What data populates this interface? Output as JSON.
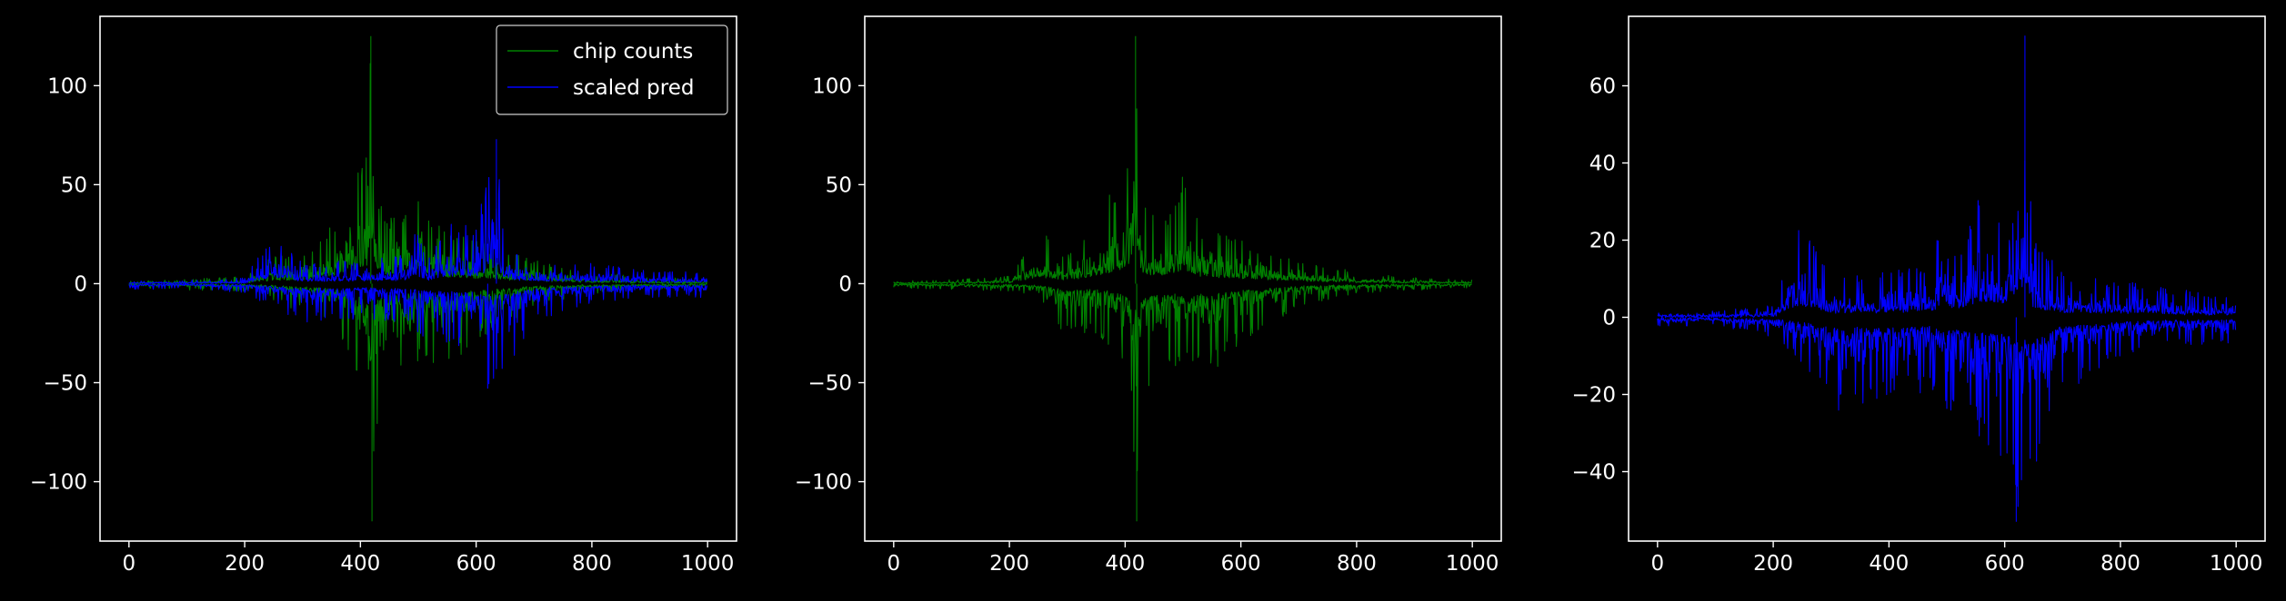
{
  "figure": {
    "background": "#000000",
    "foreground": "#ffffff"
  },
  "chart_data": [
    {
      "type": "line",
      "title": "",
      "xlabel": "",
      "ylabel": "",
      "xlim": [
        -50,
        1050
      ],
      "ylim": [
        -130,
        135
      ],
      "xticks": [
        0,
        200,
        400,
        600,
        800,
        1000
      ],
      "xtick_labels": [
        "0",
        "200",
        "400",
        "600",
        "800",
        "1000"
      ],
      "yticks": [
        -100,
        -50,
        0,
        50,
        100
      ],
      "ytick_labels": [
        "−100",
        "−50",
        "0",
        "50",
        "100"
      ],
      "grid": false,
      "legend": "top-right",
      "series": [
        {
          "name": "chip counts",
          "color": "#008000",
          "n_points": 1000,
          "upper_envelope": [
            [
              0,
              1
            ],
            [
              100,
              2
            ],
            [
              200,
              4
            ],
            [
              250,
              15
            ],
            [
              300,
              15
            ],
            [
              350,
              30
            ],
            [
              380,
              50
            ],
            [
              400,
              60
            ],
            [
              410,
              72
            ],
            [
              418,
              125
            ],
            [
              430,
              45
            ],
            [
              450,
              35
            ],
            [
              480,
              40
            ],
            [
              500,
              55
            ],
            [
              530,
              30
            ],
            [
              580,
              25
            ],
            [
              620,
              20
            ],
            [
              700,
              12
            ],
            [
              800,
              6
            ],
            [
              900,
              3
            ],
            [
              1000,
              2
            ]
          ],
          "lower_envelope": [
            [
              0,
              -2
            ],
            [
              100,
              -3
            ],
            [
              200,
              -4
            ],
            [
              250,
              -8
            ],
            [
              300,
              -15
            ],
            [
              350,
              -20
            ],
            [
              380,
              -35
            ],
            [
              400,
              -50
            ],
            [
              410,
              -66
            ],
            [
              420,
              -120
            ],
            [
              430,
              -68
            ],
            [
              450,
              -50
            ],
            [
              500,
              -40
            ],
            [
              550,
              -45
            ],
            [
              600,
              -30
            ],
            [
              700,
              -12
            ],
            [
              800,
              -5
            ],
            [
              900,
              -3
            ],
            [
              1000,
              -2
            ]
          ]
        },
        {
          "name": "scaled pred",
          "color": "#0000ff",
          "n_points": 1000,
          "upper_envelope": [
            [
              0,
              1
            ],
            [
              100,
              1.5
            ],
            [
              200,
              3
            ],
            [
              250,
              27
            ],
            [
              300,
              10
            ],
            [
              400,
              12
            ],
            [
              480,
              15
            ],
            [
              490,
              30
            ],
            [
              520,
              15
            ],
            [
              550,
              32
            ],
            [
              600,
              30
            ],
            [
              620,
              52
            ],
            [
              635,
              73
            ],
            [
              650,
              20
            ],
            [
              700,
              12
            ],
            [
              800,
              10
            ],
            [
              900,
              7
            ],
            [
              1000,
              6
            ]
          ],
          "lower_envelope": [
            [
              0,
              -3
            ],
            [
              100,
              -2
            ],
            [
              200,
              -5
            ],
            [
              250,
              -12
            ],
            [
              300,
              -20
            ],
            [
              400,
              -18
            ],
            [
              480,
              -20
            ],
            [
              500,
              -28
            ],
            [
              550,
              -30
            ],
            [
              600,
              -38
            ],
            [
              620,
              -53
            ],
            [
              650,
              -45
            ],
            [
              700,
              -20
            ],
            [
              800,
              -10
            ],
            [
              900,
              -7
            ],
            [
              1000,
              -7
            ]
          ]
        }
      ]
    },
    {
      "type": "line",
      "title": "",
      "xlabel": "",
      "ylabel": "",
      "xlim": [
        -50,
        1050
      ],
      "ylim": [
        -130,
        135
      ],
      "xticks": [
        0,
        200,
        400,
        600,
        800,
        1000
      ],
      "xtick_labels": [
        "0",
        "200",
        "400",
        "600",
        "800",
        "1000"
      ],
      "yticks": [
        -100,
        -50,
        0,
        50,
        100
      ],
      "ytick_labels": [
        "−100",
        "−50",
        "0",
        "50",
        "100"
      ],
      "grid": false,
      "legend": "none",
      "series": [
        {
          "color": "#008000",
          "n_points": 1000,
          "upper_envelope": [
            [
              0,
              1
            ],
            [
              100,
              2
            ],
            [
              200,
              4
            ],
            [
              250,
              28
            ],
            [
              300,
              15
            ],
            [
              350,
              30
            ],
            [
              380,
              50
            ],
            [
              400,
              60
            ],
            [
              410,
              72
            ],
            [
              418,
              125
            ],
            [
              430,
              45
            ],
            [
              450,
              35
            ],
            [
              480,
              40
            ],
            [
              500,
              55
            ],
            [
              530,
              30
            ],
            [
              580,
              25
            ],
            [
              620,
              20
            ],
            [
              700,
              12
            ],
            [
              800,
              6
            ],
            [
              900,
              3
            ],
            [
              1000,
              2
            ]
          ],
          "lower_envelope": [
            [
              0,
              -2
            ],
            [
              100,
              -3
            ],
            [
              200,
              -4
            ],
            [
              250,
              -8
            ],
            [
              300,
              -28
            ],
            [
              350,
              -25
            ],
            [
              380,
              -35
            ],
            [
              400,
              -50
            ],
            [
              410,
              -66
            ],
            [
              420,
              -120
            ],
            [
              430,
              -68
            ],
            [
              450,
              -50
            ],
            [
              500,
              -40
            ],
            [
              550,
              -45
            ],
            [
              600,
              -30
            ],
            [
              700,
              -12
            ],
            [
              800,
              -5
            ],
            [
              900,
              -3
            ],
            [
              1000,
              -2
            ]
          ]
        }
      ]
    },
    {
      "type": "line",
      "title": "",
      "xlabel": "",
      "ylabel": "",
      "xlim": [
        -50,
        1050
      ],
      "ylim": [
        -58,
        78
      ],
      "xticks": [
        0,
        200,
        400,
        600,
        800,
        1000
      ],
      "xtick_labels": [
        "0",
        "200",
        "400",
        "600",
        "800",
        "1000"
      ],
      "yticks": [
        -40,
        -20,
        0,
        20,
        40,
        60
      ],
      "ytick_labels": [
        "−40",
        "−20",
        "0",
        "20",
        "40",
        "60"
      ],
      "grid": false,
      "legend": "none",
      "series": [
        {
          "color": "#0000ff",
          "n_points": 1000,
          "upper_envelope": [
            [
              0,
              1
            ],
            [
              100,
              1.5
            ],
            [
              200,
              3
            ],
            [
              250,
              27
            ],
            [
              300,
              10
            ],
            [
              400,
              12
            ],
            [
              480,
              15
            ],
            [
              490,
              32
            ],
            [
              520,
              15
            ],
            [
              550,
              33
            ],
            [
              600,
              30
            ],
            [
              620,
              53
            ],
            [
              635,
              73
            ],
            [
              650,
              20
            ],
            [
              700,
              12
            ],
            [
              800,
              10
            ],
            [
              900,
              7
            ],
            [
              1000,
              6
            ]
          ],
          "lower_envelope": [
            [
              0,
              -3
            ],
            [
              100,
              -2
            ],
            [
              200,
              -5
            ],
            [
              250,
              -12
            ],
            [
              300,
              -25
            ],
            [
              400,
              -20
            ],
            [
              480,
              -20
            ],
            [
              500,
              -28
            ],
            [
              550,
              -30
            ],
            [
              600,
              -38
            ],
            [
              620,
              -53
            ],
            [
              650,
              -46
            ],
            [
              700,
              -20
            ],
            [
              800,
              -10
            ],
            [
              900,
              -7
            ],
            [
              1000,
              -7
            ]
          ]
        }
      ]
    }
  ]
}
